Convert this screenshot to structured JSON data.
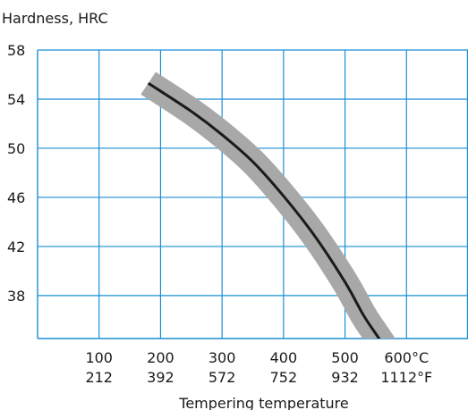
{
  "chart_data": {
    "type": "line",
    "ylabel": "Hardness, HRC",
    "xlabel": "Tempering temperature",
    "x_ticks_c": [
      "100",
      "200",
      "300",
      "400",
      "500",
      "600°C"
    ],
    "x_ticks_f": [
      "212",
      "392",
      "572",
      "752",
      "932",
      "1112°F"
    ],
    "y_ticks": [
      "58",
      "54",
      "50",
      "46",
      "42",
      "38"
    ],
    "xlim": [
      0,
      700
    ],
    "ylim": [
      34.5,
      58
    ],
    "x_tick_values": [
      100,
      200,
      300,
      400,
      500,
      600
    ],
    "y_tick_values": [
      58,
      54,
      50,
      46,
      42,
      38
    ],
    "grid": true,
    "series": [
      {
        "x": [
          180,
          250,
          300,
          350,
          400,
          450,
          500,
          530,
          550,
          565
        ],
        "y": [
          55.3,
          53.0,
          51.1,
          48.9,
          46.1,
          42.9,
          39.1,
          36.4,
          34.9,
          33.8
        ],
        "band": 1.0
      }
    ],
    "colors": {
      "grid": "#1a8fd6",
      "axis": "#1a8fd6",
      "line": "#1a1a1a",
      "band": "#a8a8a8"
    }
  }
}
